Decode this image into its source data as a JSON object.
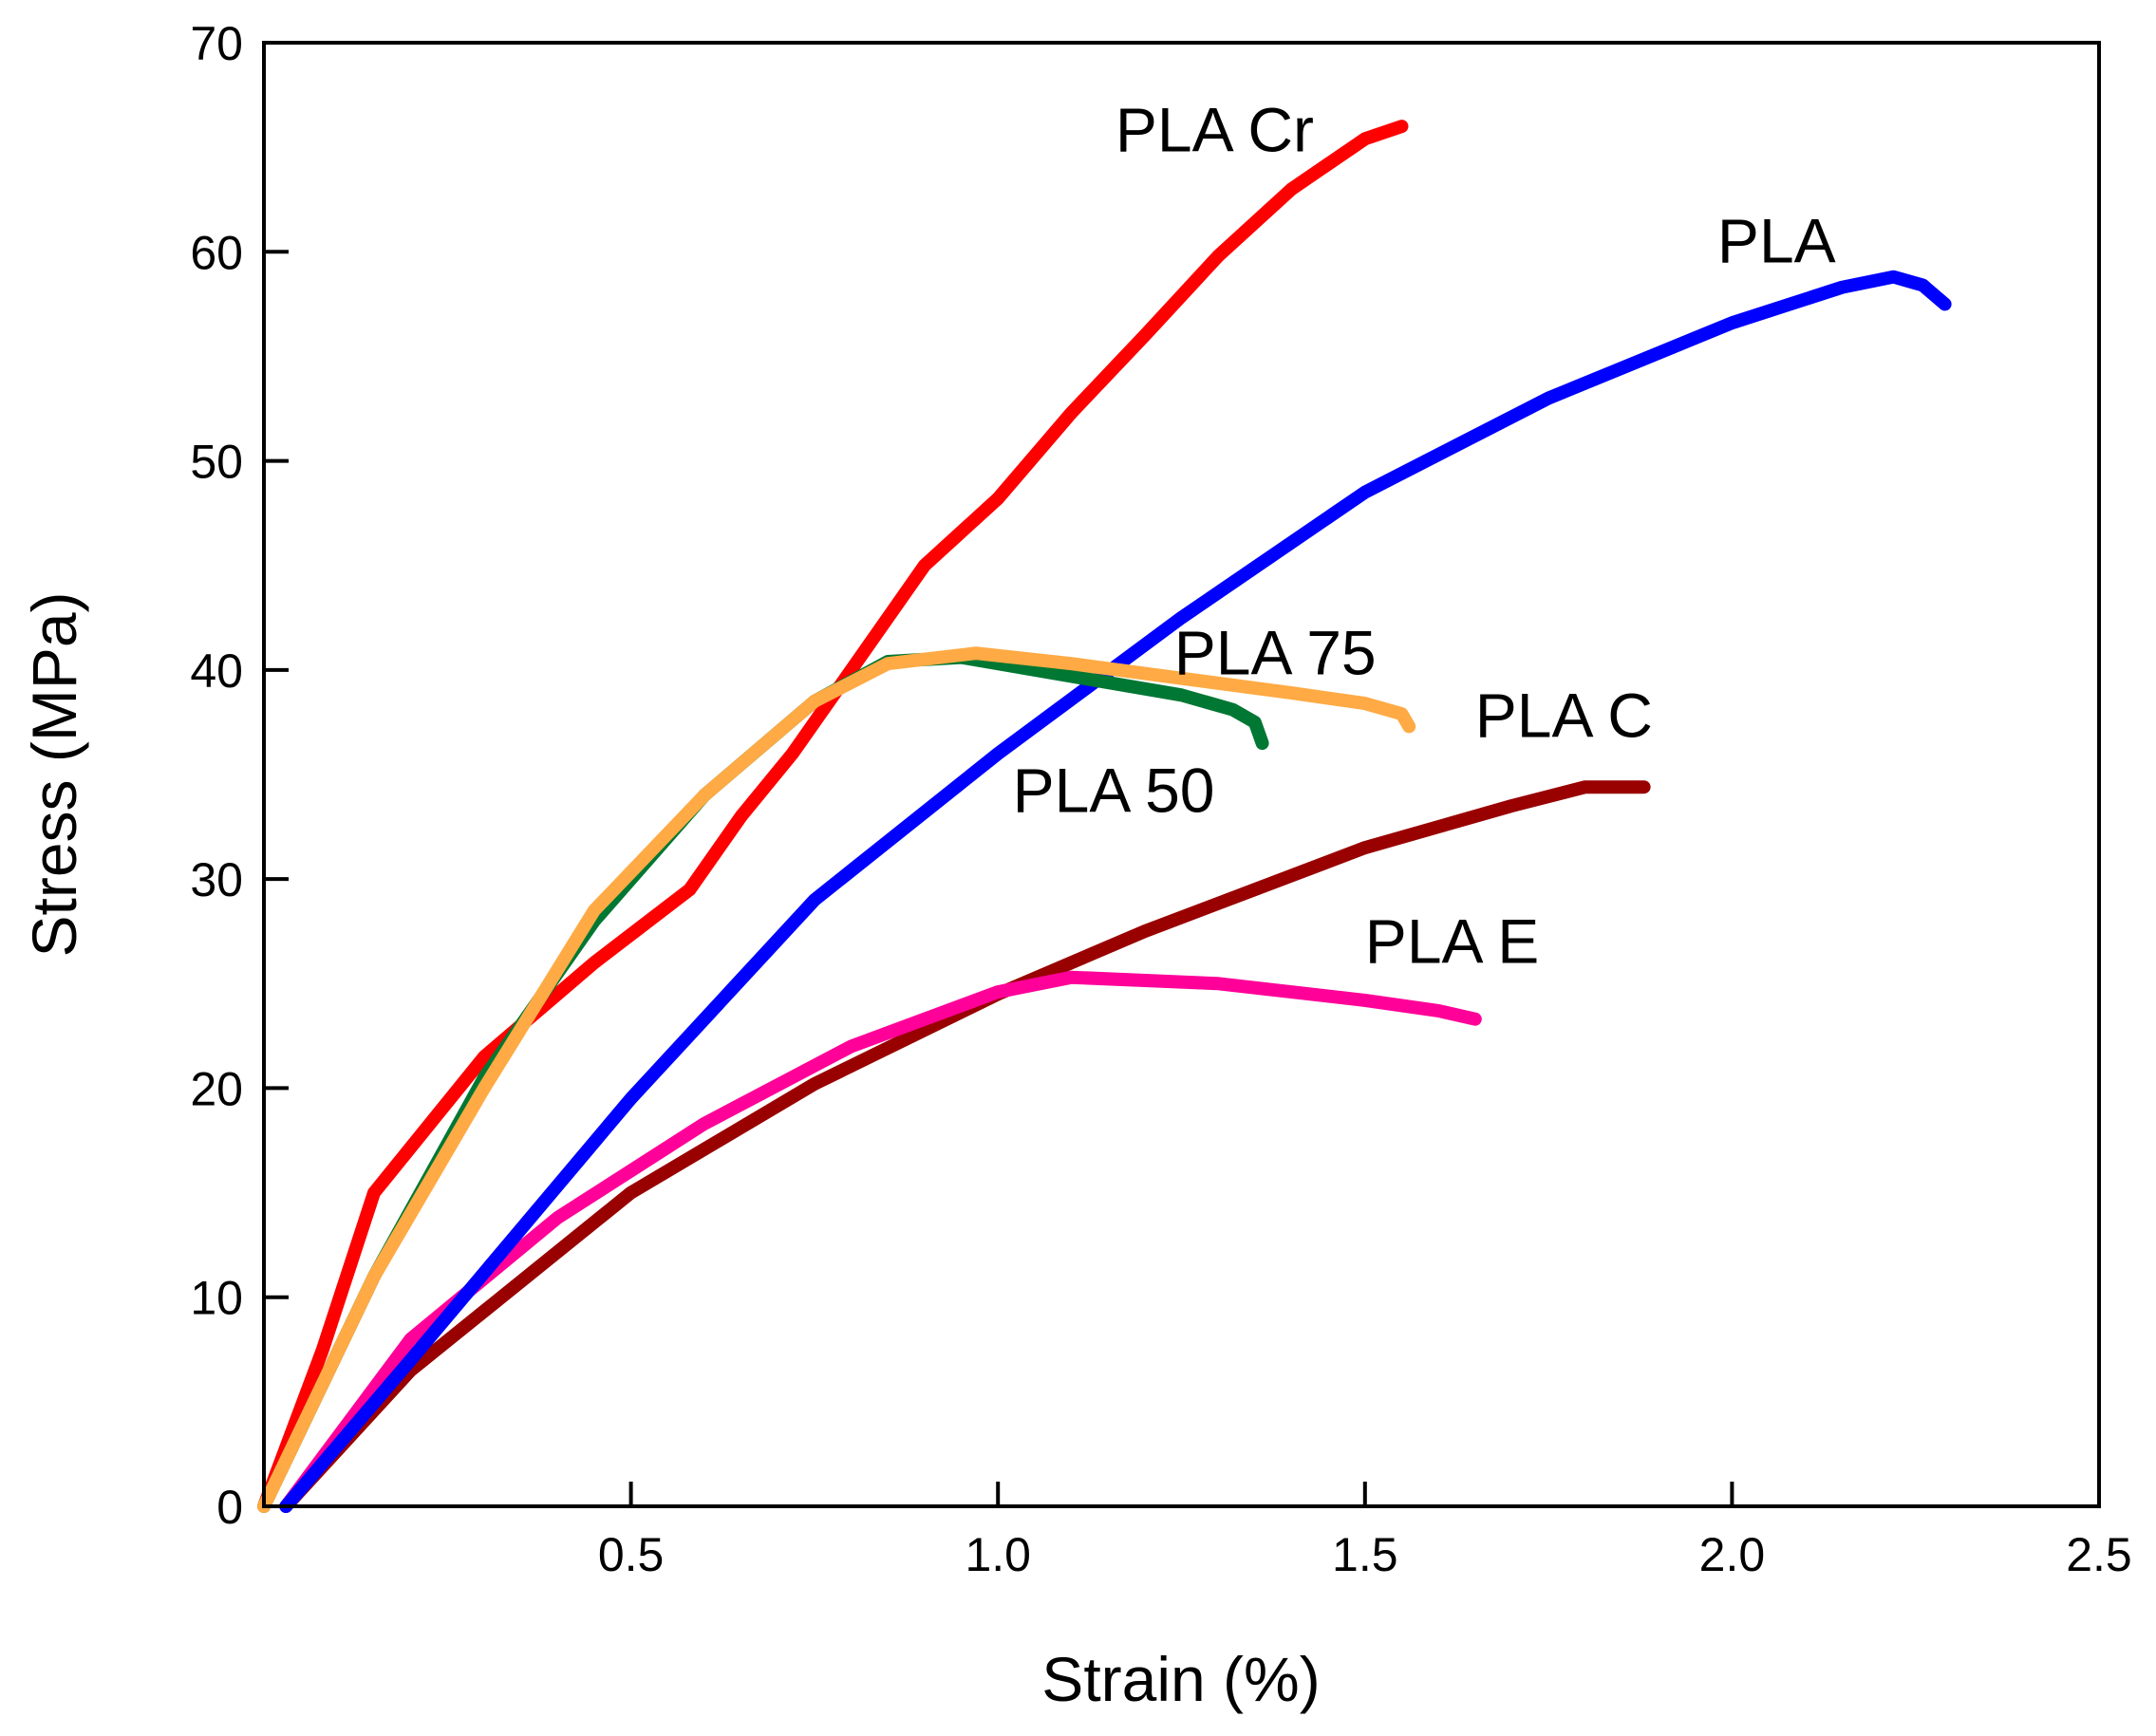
{
  "chart_data": {
    "type": "line",
    "title": "",
    "xlabel": "Strain (%)",
    "ylabel": "Stress (MPa)",
    "xlim": [
      0,
      2.5
    ],
    "ylim": [
      0,
      70
    ],
    "x_ticks": [
      0.5,
      1.0,
      1.5,
      2.0,
      2.5
    ],
    "x_tick_labels": [
      "0.5",
      "1.0",
      "1.5",
      "2.0",
      "2.5"
    ],
    "y_ticks": [
      0,
      10,
      20,
      30,
      40,
      50,
      60,
      70
    ],
    "y_tick_labels": [
      "0",
      "10",
      "20",
      "30",
      "40",
      "50",
      "60",
      "70"
    ],
    "grid": false,
    "series": [
      {
        "name": "PLA C",
        "color": "#990000",
        "label": "PLA C",
        "label_anchor": [
          1.65,
          36.8
        ],
        "points": [
          [
            0.03,
            0
          ],
          [
            0.2,
            6.5
          ],
          [
            0.5,
            15.0
          ],
          [
            0.75,
            20.2
          ],
          [
            1.0,
            24.5
          ],
          [
            1.2,
            27.5
          ],
          [
            1.5,
            31.5
          ],
          [
            1.7,
            33.5
          ],
          [
            1.8,
            34.4
          ],
          [
            1.88,
            34.4
          ]
        ]
      },
      {
        "name": "PLA E",
        "color": "#ff0099",
        "label": "PLA E",
        "label_anchor": [
          1.5,
          26.0
        ],
        "points": [
          [
            0.03,
            0
          ],
          [
            0.2,
            8.0
          ],
          [
            0.4,
            13.8
          ],
          [
            0.6,
            18.3
          ],
          [
            0.8,
            22.0
          ],
          [
            1.0,
            24.6
          ],
          [
            1.1,
            25.3
          ],
          [
            1.3,
            25.0
          ],
          [
            1.5,
            24.2
          ],
          [
            1.6,
            23.7
          ],
          [
            1.65,
            23.3
          ]
        ]
      },
      {
        "name": "PLA",
        "color": "#0000ff",
        "label": "PLA",
        "label_anchor": [
          1.98,
          59.5
        ],
        "points": [
          [
            0.03,
            0
          ],
          [
            0.2,
            7.0
          ],
          [
            0.5,
            19.5
          ],
          [
            0.75,
            29.0
          ],
          [
            1.0,
            36.0
          ],
          [
            1.25,
            42.5
          ],
          [
            1.5,
            48.5
          ],
          [
            1.75,
            53.0
          ],
          [
            2.0,
            56.6
          ],
          [
            2.15,
            58.3
          ],
          [
            2.22,
            58.8
          ],
          [
            2.26,
            58.4
          ],
          [
            2.29,
            57.5
          ]
        ]
      },
      {
        "name": "PLA Cr",
        "color": "#ff0000",
        "label": "PLA Cr",
        "label_anchor": [
          1.16,
          64.8
        ],
        "points": [
          [
            0.0,
            0
          ],
          [
            0.08,
            7.5
          ],
          [
            0.15,
            15.0
          ],
          [
            0.3,
            21.5
          ],
          [
            0.45,
            26.0
          ],
          [
            0.58,
            29.5
          ],
          [
            0.65,
            33.0
          ],
          [
            0.72,
            36.0
          ],
          [
            0.8,
            40.0
          ],
          [
            0.9,
            45.0
          ],
          [
            1.0,
            48.2
          ],
          [
            1.1,
            52.3
          ],
          [
            1.2,
            56.0
          ],
          [
            1.3,
            59.8
          ],
          [
            1.4,
            63.0
          ],
          [
            1.5,
            65.4
          ],
          [
            1.55,
            66.0
          ]
        ]
      },
      {
        "name": "PLA 50",
        "color": "#007733",
        "label": "PLA 50",
        "label_anchor": [
          1.02,
          33.2
        ],
        "points": [
          [
            0.0,
            0
          ],
          [
            0.15,
            11.0
          ],
          [
            0.3,
            20.5
          ],
          [
            0.45,
            28.0
          ],
          [
            0.6,
            34.0
          ],
          [
            0.75,
            38.5
          ],
          [
            0.85,
            40.4
          ],
          [
            0.95,
            40.6
          ],
          [
            1.05,
            40.0
          ],
          [
            1.15,
            39.4
          ],
          [
            1.25,
            38.8
          ],
          [
            1.32,
            38.1
          ],
          [
            1.35,
            37.5
          ],
          [
            1.36,
            36.5
          ]
        ]
      },
      {
        "name": "PLA 75",
        "color": "#ffaa44",
        "label": "PLA 75",
        "label_anchor": [
          1.24,
          39.8
        ],
        "points": [
          [
            0.0,
            0
          ],
          [
            0.15,
            11.0
          ],
          [
            0.3,
            20.0
          ],
          [
            0.45,
            28.5
          ],
          [
            0.6,
            34.0
          ],
          [
            0.75,
            38.5
          ],
          [
            0.85,
            40.3
          ],
          [
            0.97,
            40.8
          ],
          [
            1.1,
            40.3
          ],
          [
            1.25,
            39.6
          ],
          [
            1.4,
            38.9
          ],
          [
            1.5,
            38.4
          ],
          [
            1.55,
            37.9
          ],
          [
            1.56,
            37.3
          ]
        ]
      }
    ]
  }
}
